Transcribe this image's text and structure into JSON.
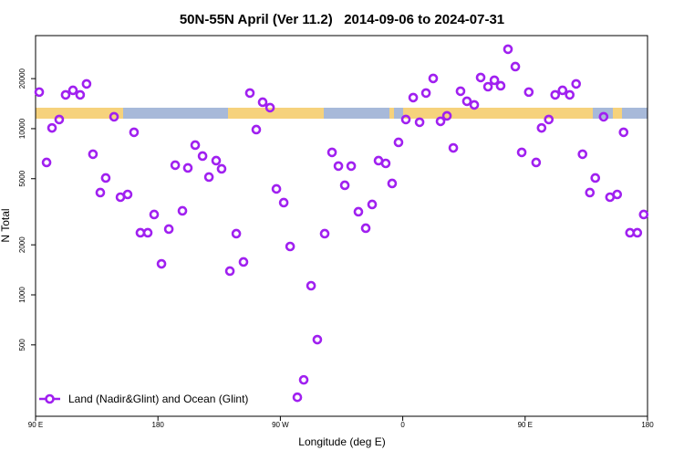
{
  "chart_data": {
    "type": "scatter",
    "title": "50N-55N April (Ver 11.2)   2014-09-06 to 2024-07-31",
    "x_label": "Longitude (deg E)",
    "y_label": "N Total",
    "log_y": true,
    "legend": "bottom-left",
    "xlim": [
      90,
      540
    ],
    "xticks": [
      {
        "value": 90,
        "label": "90 E"
      },
      180,
      {
        "value": 270,
        "label": "90 W"
      },
      {
        "value": 360,
        "label": "0"
      },
      {
        "value": 450,
        "label": "90 E"
      },
      {
        "value": 540,
        "label": "180"
      }
    ],
    "ylim": [
      186,
      36300
    ],
    "yticks": [
      500,
      1000,
      2000,
      5000,
      10000,
      20000
    ],
    "x": [
      92.7,
      98.1,
      102.1,
      107.4,
      112.1,
      117.5,
      122.8,
      127.5,
      132.2,
      137.6,
      141.6,
      147.7,
      152.4,
      157.7,
      162.4,
      167.1,
      172.5,
      177.2,
      182.6,
      188.0,
      192.7,
      198.0,
      202.0,
      207.4,
      212.8,
      217.5,
      222.8,
      226.8,
      232.9,
      237.6,
      242.9,
      247.6,
      252.3,
      257.0,
      262.4,
      267.1,
      272.5,
      277.2,
      282.5,
      287.2,
      292.6,
      297.2,
      302.6,
      308.0,
      312.7,
      317.4,
      322.1,
      327.4,
      332.8,
      337.5,
      342.2,
      347.5,
      352.2,
      356.9,
      362.3,
      367.7,
      372.4,
      377.1,
      382.4,
      387.8,
      392.5,
      397.2,
      402.5,
      407.2,
      412.6,
      417.3,
      422.7,
      427.4,
      432.0,
      437.4,
      442.8,
      447.5,
      452.7,
      458.1,
      462.1,
      467.4,
      472.1,
      477.5,
      482.8,
      487.5,
      492.2,
      497.6,
      501.6,
      507.7,
      512.4,
      517.7,
      522.4,
      527.1,
      532.5,
      537.2
    ],
    "series": [
      {
        "name": "Land (Nadir&Glint) and Ocean (Glint)",
        "color": "#a020f0",
        "values": [
          16600,
          6260,
          10100,
          11350,
          15970,
          17010,
          15970,
          18590,
          7020,
          4125,
          5050,
          11790,
          3870,
          4020,
          9510,
          2364,
          2364,
          3045,
          1537,
          2487,
          6030,
          3203,
          5803,
          7960,
          6840,
          5114,
          6420,
          5730,
          1390,
          2334,
          1577,
          16380,
          9870,
          14430,
          13380,
          4340,
          3590,
          1955,
          242,
          308,
          1135,
          538,
          2334,
          7200,
          5955,
          4563,
          5955,
          3162,
          2518,
          3500,
          6420,
          6180,
          4680,
          8270,
          11350,
          15380,
          10930,
          16380,
          20060,
          11070,
          11940,
          7660,
          16800,
          14620,
          13900,
          20310,
          17880,
          19550,
          18110,
          30060,
          23630,
          7200,
          16600,
          6260,
          10100,
          11350,
          15970,
          17010,
          15970,
          18590,
          7020,
          4125,
          5050,
          11790,
          3870,
          4020,
          9510,
          2364,
          2364,
          3045
        ]
      }
    ]
  }
}
